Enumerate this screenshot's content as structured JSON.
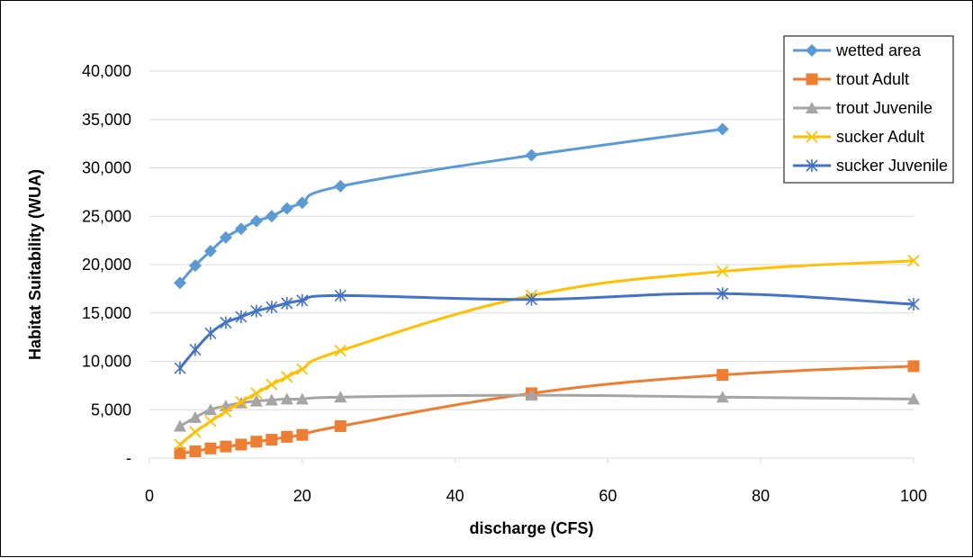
{
  "chart_data": {
    "type": "line",
    "title": "",
    "xlabel": "discharge (CFS)",
    "ylabel": "Habitat Suitability (WUA)",
    "xlim": [
      0,
      100
    ],
    "ylim": [
      0,
      40000
    ],
    "xticks": [
      0,
      20,
      40,
      60,
      80,
      100
    ],
    "xtick_labels": [
      "0",
      "20",
      "40",
      "60",
      "80",
      "100"
    ],
    "yticks": [
      0,
      5000,
      10000,
      15000,
      20000,
      25000,
      30000,
      35000,
      40000
    ],
    "ytick_labels": [
      "-",
      "5,000",
      "10,000",
      "15,000",
      "20,000",
      "25,000",
      "30,000",
      "35,000",
      "40,000"
    ],
    "grid": "horizontal",
    "legend_position": "top-right",
    "series": [
      {
        "name": "wetted area",
        "color": "#5B9BD5",
        "marker": "diamond",
        "x": [
          4,
          6,
          8,
          10,
          12,
          14,
          16,
          18,
          20,
          25,
          50,
          75
        ],
        "y": [
          18100,
          19900,
          21400,
          22800,
          23700,
          24500,
          25000,
          25800,
          26400,
          28100,
          31300,
          34000
        ]
      },
      {
        "name": "trout Adult",
        "color": "#ED7D31",
        "marker": "square",
        "x": [
          4,
          6,
          8,
          10,
          12,
          14,
          16,
          18,
          20,
          25,
          50,
          75,
          100
        ],
        "y": [
          500,
          700,
          1000,
          1200,
          1400,
          1700,
          1900,
          2200,
          2400,
          3300,
          6700,
          8600,
          9500
        ]
      },
      {
        "name": "trout Juvenile",
        "color": "#A5A5A5",
        "marker": "triangle",
        "x": [
          4,
          6,
          8,
          10,
          12,
          14,
          16,
          18,
          20,
          25,
          50,
          75,
          100
        ],
        "y": [
          3300,
          4200,
          5000,
          5400,
          5700,
          5900,
          6000,
          6100,
          6100,
          6300,
          6500,
          6300,
          6100
        ]
      },
      {
        "name": "sucker Adult",
        "color": "#FFC000",
        "marker": "x",
        "x": [
          4,
          6,
          8,
          10,
          12,
          14,
          16,
          18,
          20,
          25,
          50,
          75,
          100
        ],
        "y": [
          1400,
          2700,
          3800,
          4800,
          5800,
          6700,
          7600,
          8400,
          9200,
          11100,
          16800,
          19300,
          20400
        ]
      },
      {
        "name": "sucker Juvenile",
        "color": "#4472C4",
        "marker": "asterisk",
        "x": [
          4,
          6,
          8,
          10,
          12,
          14,
          16,
          18,
          20,
          25,
          50,
          75,
          100
        ],
        "y": [
          9300,
          11200,
          12900,
          14000,
          14600,
          15200,
          15600,
          16000,
          16300,
          16800,
          16400,
          17000,
          15900
        ]
      }
    ]
  }
}
